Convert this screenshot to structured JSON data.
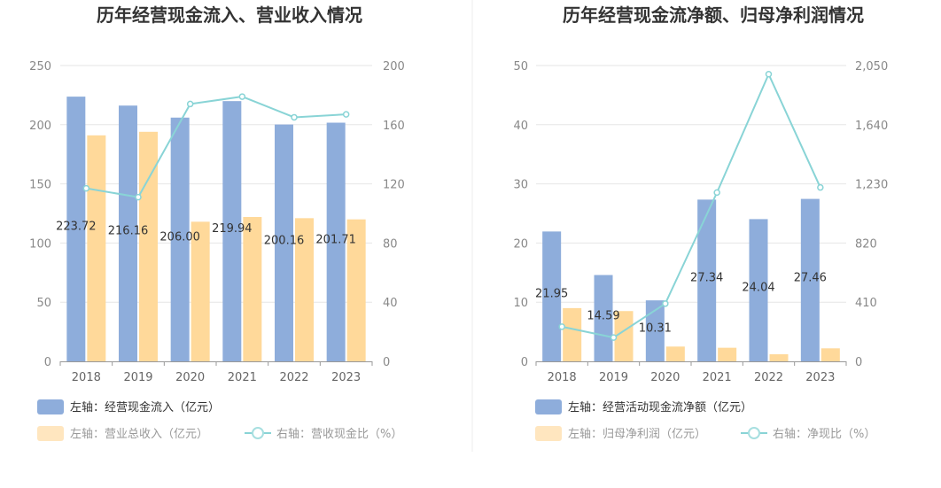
{
  "colors": {
    "bar1": "#8eaddb",
    "bar2": "#ffd99a",
    "line": "#89d4d6",
    "legend_bar1": "#8eaddb",
    "legend_bar2": "#ffe6bf",
    "axis_text": "#888888",
    "grid": "#e6e6e6"
  },
  "chart_data": [
    {
      "type": "bar",
      "title": "历年经营现金流入、营业收入情况",
      "categories": [
        "2018",
        "2019",
        "2020",
        "2021",
        "2022",
        "2023"
      ],
      "left_axis": {
        "min": 0,
        "max": 250,
        "ticks": [
          "0",
          "50",
          "100",
          "150",
          "200",
          "250"
        ]
      },
      "right_axis": {
        "min": 0,
        "max": 200,
        "ticks": [
          "0",
          "40",
          "80",
          "120",
          "160",
          "200"
        ]
      },
      "series": [
        {
          "name": "左轴：经营现金流入（亿元）",
          "axis": "left",
          "kind": "bar",
          "values": [
            223.72,
            216.16,
            206.0,
            219.94,
            200.16,
            201.71
          ],
          "labels": [
            "223.72",
            "216.16",
            "206.00",
            "219.94",
            "200.16",
            "201.71"
          ]
        },
        {
          "name": "左轴：营业总收入（亿元）",
          "axis": "left",
          "kind": "bar",
          "values": [
            191,
            194,
            118,
            122,
            121,
            120
          ]
        },
        {
          "name": "右轴：营收现金比（%）",
          "axis": "right",
          "kind": "line",
          "values": [
            117,
            111,
            174,
            179,
            165,
            167
          ]
        }
      ],
      "grid": true,
      "legend_position": "bottom-left"
    },
    {
      "type": "bar",
      "title": "历年经营现金流净额、归母净利润情况",
      "categories": [
        "2018",
        "2019",
        "2020",
        "2021",
        "2022",
        "2023"
      ],
      "left_axis": {
        "min": 0,
        "max": 50,
        "ticks": [
          "0",
          "10",
          "20",
          "30",
          "40",
          "50"
        ]
      },
      "right_axis": {
        "min": 0,
        "max": 2050,
        "ticks": [
          "0",
          "410",
          "820",
          "1,230",
          "1,640",
          "2,050"
        ]
      },
      "series": [
        {
          "name": "左轴：经营活动现金流净额（亿元）",
          "axis": "left",
          "kind": "bar",
          "values": [
            21.95,
            14.59,
            10.31,
            27.34,
            24.04,
            27.46
          ],
          "labels": [
            "21.95",
            "14.59",
            "10.31",
            "27.34",
            "24.04",
            "27.46"
          ]
        },
        {
          "name": "左轴：归母净利润（亿元）",
          "axis": "left",
          "kind": "bar",
          "values": [
            9.0,
            8.5,
            2.5,
            2.3,
            1.2,
            2.2
          ]
        },
        {
          "name": "右轴：净现比（%）",
          "axis": "right",
          "kind": "line",
          "values": [
            240,
            165,
            400,
            1170,
            1990,
            1205
          ]
        }
      ],
      "grid": true,
      "legend_position": "bottom-left"
    }
  ]
}
